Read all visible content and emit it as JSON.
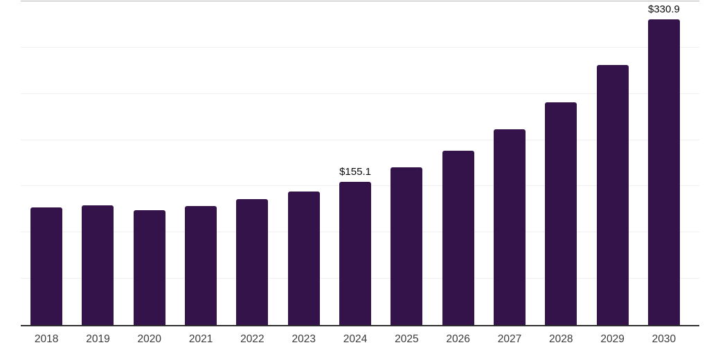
{
  "chart": {
    "background": "#ffffff",
    "bar_color": "#34124A",
    "axis_line_color": "#2e2e2e",
    "gridline_color": "#efefef",
    "top_gridline_color": "#b5b5b5",
    "tick_label_color": "#3a3a3a",
    "data_label_color": "#0a0a0a"
  },
  "chart_data": {
    "type": "bar",
    "title": "",
    "xlabel": "",
    "ylabel": "",
    "categories": [
      "2018",
      "2019",
      "2020",
      "2021",
      "2022",
      "2023",
      "2024",
      "2025",
      "2026",
      "2027",
      "2028",
      "2029",
      "2030"
    ],
    "values": [
      127.0,
      129.5,
      124.5,
      129.0,
      136.0,
      144.5,
      155.1,
      170.5,
      188.5,
      212.0,
      240.8,
      281.3,
      330.9
    ],
    "data_labels": {
      "2024": "$155.1",
      "2030": "$330.9"
    },
    "ylim": [
      0,
      350
    ],
    "gridline_step": 50,
    "grid": true,
    "legend": "none"
  }
}
